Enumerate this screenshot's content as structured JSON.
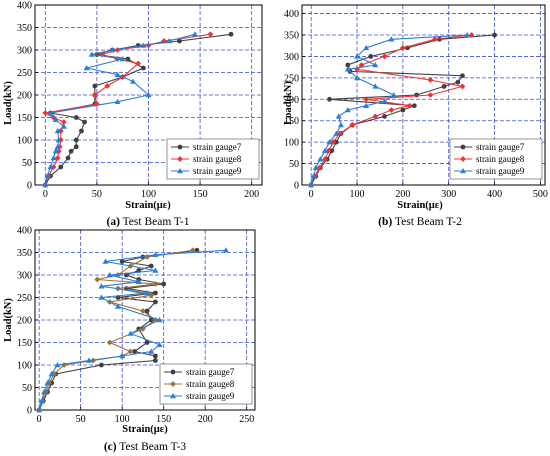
{
  "chart_data": [
    {
      "type": "line",
      "caption_letter": "(a)",
      "caption_text": " Test Beam T-1",
      "xlabel": "Strain(με)",
      "ylabel": "Load(kN)",
      "xlim": [
        -10,
        210
      ],
      "ylim": [
        0,
        400
      ],
      "xticks": [
        0,
        50,
        100,
        150,
        200
      ],
      "yticks": [
        0,
        50,
        100,
        150,
        200,
        250,
        300,
        350,
        400
      ],
      "grid": true,
      "legend_position": "lower-right",
      "series": [
        {
          "name": "strain gauge7",
          "color": "#404040",
          "marker": "circle",
          "points": [
            [
              0,
              0
            ],
            [
              5,
              20
            ],
            [
              15,
              40
            ],
            [
              22,
              60
            ],
            [
              25,
              75
            ],
            [
              30,
              85
            ],
            [
              30,
              100
            ],
            [
              35,
              120
            ],
            [
              38,
              140
            ],
            [
              30,
              150
            ],
            [
              5,
              160
            ],
            [
              48,
              180
            ],
            [
              48,
              200
            ],
            [
              48,
              220
            ],
            [
              75,
              240
            ],
            [
              95,
              260
            ],
            [
              80,
              280
            ],
            [
              50,
              290
            ],
            [
              65,
              300
            ],
            [
              90,
              310
            ],
            [
              130,
              320
            ],
            [
              180,
              335
            ]
          ]
        },
        {
          "name": "strain gauge8",
          "color": "#ee3333",
          "marker": "diamond",
          "points": [
            [
              0,
              0
            ],
            [
              3,
              20
            ],
            [
              8,
              40
            ],
            [
              12,
              60
            ],
            [
              13,
              75
            ],
            [
              14,
              85
            ],
            [
              15,
              100
            ],
            [
              15,
              120
            ],
            [
              18,
              140
            ],
            [
              8,
              150
            ],
            [
              0,
              160
            ],
            [
              50,
              180
            ],
            [
              48,
              200
            ],
            [
              60,
              220
            ],
            [
              75,
              240
            ],
            [
              90,
              270
            ],
            [
              70,
              280
            ],
            [
              55,
              290
            ],
            [
              70,
              300
            ],
            [
              100,
              310
            ],
            [
              115,
              320
            ],
            [
              160,
              335
            ]
          ]
        },
        {
          "name": "strain gauge9",
          "color": "#2a7ed6",
          "marker": "triangle",
          "points": [
            [
              0,
              0
            ],
            [
              2,
              20
            ],
            [
              5,
              40
            ],
            [
              8,
              60
            ],
            [
              10,
              75
            ],
            [
              12,
              85
            ],
            [
              13,
              100
            ],
            [
              12,
              120
            ],
            [
              18,
              130
            ],
            [
              10,
              145
            ],
            [
              5,
              160
            ],
            [
              70,
              185
            ],
            [
              100,
              200
            ],
            [
              85,
              230
            ],
            [
              70,
              245
            ],
            [
              40,
              260
            ],
            [
              75,
              280
            ],
            [
              45,
              290
            ],
            [
              65,
              300
            ],
            [
              95,
              310
            ],
            [
              120,
              320
            ],
            [
              145,
              335
            ]
          ]
        }
      ]
    },
    {
      "type": "line",
      "caption_letter": "(b)",
      "caption_text": " Test Beam T-2",
      "xlabel": "Strain(με)",
      "ylabel": "Load(kN)",
      "xlim": [
        -20,
        510
      ],
      "ylim": [
        0,
        420
      ],
      "xticks": [
        0,
        100,
        200,
        300,
        400,
        500
      ],
      "yticks": [
        0,
        50,
        100,
        150,
        200,
        250,
        300,
        350,
        400
      ],
      "grid": true,
      "legend_position": "lower-right",
      "series": [
        {
          "name": "strain gauge7",
          "color": "#404040",
          "marker": "circle",
          "points": [
            [
              0,
              0
            ],
            [
              10,
              20
            ],
            [
              20,
              40
            ],
            [
              35,
              60
            ],
            [
              45,
              80
            ],
            [
              55,
              100
            ],
            [
              65,
              120
            ],
            [
              90,
              140
            ],
            [
              160,
              160
            ],
            [
              200,
              175
            ],
            [
              225,
              185
            ],
            [
              40,
              200
            ],
            [
              230,
              210
            ],
            [
              290,
              230
            ],
            [
              320,
              240
            ],
            [
              330,
              255
            ],
            [
              85,
              265
            ],
            [
              80,
              280
            ],
            [
              130,
              300
            ],
            [
              210,
              320
            ],
            [
              280,
              340
            ],
            [
              400,
              350
            ]
          ]
        },
        {
          "name": "strain gauge8",
          "color": "#ee3333",
          "marker": "diamond",
          "points": [
            [
              0,
              0
            ],
            [
              8,
              20
            ],
            [
              18,
              40
            ],
            [
              30,
              60
            ],
            [
              38,
              80
            ],
            [
              48,
              100
            ],
            [
              62,
              120
            ],
            [
              90,
              140
            ],
            [
              140,
              160
            ],
            [
              175,
              175
            ],
            [
              215,
              185
            ],
            [
              120,
              200
            ],
            [
              260,
              210
            ],
            [
              330,
              230
            ],
            [
              260,
              245
            ],
            [
              100,
              270
            ],
            [
              110,
              280
            ],
            [
              160,
              300
            ],
            [
              200,
              320
            ],
            [
              270,
              340
            ],
            [
              350,
              350
            ]
          ]
        },
        {
          "name": "strain gauge9",
          "color": "#2a7ed6",
          "marker": "triangle",
          "points": [
            [
              0,
              0
            ],
            [
              5,
              20
            ],
            [
              10,
              40
            ],
            [
              20,
              60
            ],
            [
              30,
              80
            ],
            [
              40,
              100
            ],
            [
              55,
              120
            ],
            [
              65,
              140
            ],
            [
              60,
              160
            ],
            [
              80,
              175
            ],
            [
              120,
              185
            ],
            [
              160,
              195
            ],
            [
              180,
              210
            ],
            [
              140,
              230
            ],
            [
              100,
              250
            ],
            [
              80,
              270
            ],
            [
              140,
              280
            ],
            [
              100,
              300
            ],
            [
              120,
              320
            ],
            [
              175,
              340
            ],
            [
              340,
              350
            ]
          ]
        }
      ]
    },
    {
      "type": "line",
      "caption_letter": "(c)",
      "caption_text": " Test Beam T-3",
      "xlabel": "Strain(με)",
      "ylabel": "Load(kN)",
      "xlim": [
        -5,
        260
      ],
      "ylim": [
        0,
        400
      ],
      "xticks": [
        0,
        50,
        100,
        150,
        200,
        250
      ],
      "yticks": [
        0,
        50,
        100,
        150,
        200,
        250,
        300,
        350,
        400
      ],
      "grid": true,
      "legend_position": "lower-right",
      "series": [
        {
          "name": "strain gauge7",
          "color": "#404040",
          "marker": "circle",
          "points": [
            [
              0,
              0
            ],
            [
              5,
              20
            ],
            [
              10,
              40
            ],
            [
              15,
              60
            ],
            [
              20,
              80
            ],
            [
              75,
              100
            ],
            [
              140,
              110
            ],
            [
              140,
              120
            ],
            [
              115,
              130
            ],
            [
              130,
              150
            ],
            [
              120,
              180
            ],
            [
              135,
              200
            ],
            [
              130,
              220
            ],
            [
              140,
              240
            ],
            [
              95,
              250
            ],
            [
              140,
              260
            ],
            [
              105,
              270
            ],
            [
              150,
              280
            ],
            [
              120,
              290
            ],
            [
              105,
              300
            ],
            [
              120,
              310
            ],
            [
              135,
              320
            ],
            [
              100,
              330
            ],
            [
              125,
              340
            ],
            [
              190,
              355
            ]
          ]
        },
        {
          "name": "strain gauge8",
          "color": "#a07030",
          "marker": "diamond",
          "points": [
            [
              0,
              0
            ],
            [
              4,
              20
            ],
            [
              8,
              40
            ],
            [
              12,
              60
            ],
            [
              18,
              80
            ],
            [
              30,
              100
            ],
            [
              65,
              110
            ],
            [
              100,
              120
            ],
            [
              110,
              130
            ],
            [
              85,
              150
            ],
            [
              125,
              180
            ],
            [
              140,
              200
            ],
            [
              125,
              220
            ],
            [
              85,
              240
            ],
            [
              135,
              255
            ],
            [
              95,
              270
            ],
            [
              140,
              280
            ],
            [
              70,
              290
            ],
            [
              95,
              300
            ],
            [
              110,
              320
            ],
            [
              130,
              340
            ],
            [
              185,
              355
            ]
          ]
        },
        {
          "name": "strain gauge9",
          "color": "#2a7ed6",
          "marker": "triangle",
          "points": [
            [
              0,
              0
            ],
            [
              3,
              20
            ],
            [
              6,
              40
            ],
            [
              10,
              60
            ],
            [
              15,
              80
            ],
            [
              22,
              100
            ],
            [
              60,
              110
            ],
            [
              100,
              120
            ],
            [
              135,
              130
            ],
            [
              145,
              145
            ],
            [
              110,
              170
            ],
            [
              145,
              200
            ],
            [
              95,
              230
            ],
            [
              75,
              250
            ],
            [
              130,
              260
            ],
            [
              75,
              275
            ],
            [
              120,
              285
            ],
            [
              85,
              300
            ],
            [
              140,
              310
            ],
            [
              80,
              330
            ],
            [
              140,
              345
            ],
            [
              225,
              355
            ]
          ]
        }
      ]
    }
  ]
}
